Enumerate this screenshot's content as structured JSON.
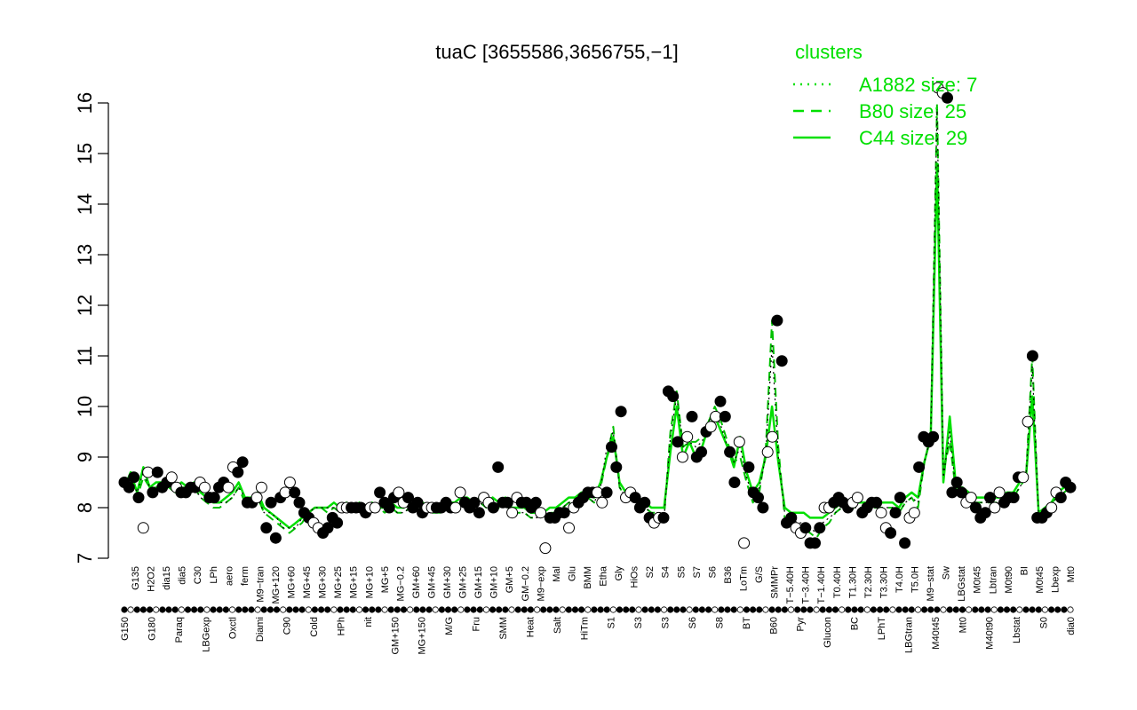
{
  "chart_data": {
    "type": "line",
    "title": "tuaC [3655586,3656755,−1]",
    "ylim": [
      7,
      16
    ],
    "yticks": [
      "7",
      "8",
      "9",
      "10",
      "11",
      "12",
      "13",
      "14",
      "15",
      "16"
    ],
    "x_ticklabels_top": [
      "G135",
      "H2O2",
      "dia15",
      "dia5",
      "C30",
      "LPh",
      "aero",
      "ferm",
      "M9−tran",
      "MG+120",
      "MG+60",
      "MG+45",
      "MG+30",
      "MG+25",
      "MG+15",
      "MG+10",
      "MG+5",
      "MG−0.2",
      "GM+60",
      "GM+45",
      "GM+30",
      "GM+25",
      "GM+15",
      "GM+10",
      "GM+5",
      "GM−0.2",
      "M9−exp",
      "Mal",
      "Glu",
      "BMM",
      "Etha",
      "Gly",
      "HiOs",
      "S2",
      "S4",
      "S5",
      "S7",
      "S6",
      "B36",
      "LoTm",
      "G/S",
      "SMMPr",
      "T−5.40H",
      "T−3.40H",
      "T−1.40H",
      "T0.40H",
      "T1.30H",
      "T2.30H",
      "T3.30H",
      "T4.0H",
      "T5.0H",
      "M9−stat",
      "Sw",
      "LBGstat",
      "M0t45",
      "Lbtran",
      "M0t90",
      "BI",
      "M0t45",
      "Lbexp",
      "Mt0"
    ],
    "x_ticklabels_bottom": [
      "G150",
      "G180",
      "Paraq",
      "LBGexp",
      "Oxctl",
      "Diami",
      "C90",
      "Cold",
      "HPh",
      "nit",
      "GM+150",
      "MG+150",
      "M/G",
      "Fru",
      "SMM",
      "Heat",
      "Salt",
      "HiTm",
      "S1",
      "S3",
      "S3",
      "S6",
      "S8",
      "BT",
      "B60",
      "Pyr",
      "Glucon",
      "BC",
      "LPhT",
      "LBGtran",
      "M40t45",
      "Mt0",
      "M40t90",
      "Lbstat",
      "S0",
      "dia0"
    ],
    "legend": {
      "title": "clusters",
      "entries": [
        {
          "label": "A1882 size: 7",
          "style": "dotted"
        },
        {
          "label": "B80 size: 25",
          "style": "dashed"
        },
        {
          "label": "C44 size: 29",
          "style": "solid"
        }
      ]
    },
    "series": [
      {
        "style": "solid",
        "values": [
          8.4,
          8.7,
          8.3,
          8.8,
          8.4,
          8.5,
          8.5,
          8.4,
          8.4,
          8.5,
          8.4,
          8.5,
          8.3,
          8.2,
          8.1,
          8.1,
          8.2,
          8.3,
          8.5,
          8.2,
          8.2,
          8.3,
          8.0,
          7.9,
          7.8,
          7.7,
          7.6,
          7.7,
          7.8,
          7.9,
          8.0,
          8.0,
          8.0,
          8.1,
          8.0,
          8.1,
          8.0,
          8.1,
          8.0,
          8.1,
          8.0,
          8.0,
          8.1,
          8.0,
          8.0,
          8.1,
          8.0,
          8.1,
          8.0,
          8.0,
          8.0,
          8.1,
          8.1,
          8.2,
          8.2,
          8.1,
          8.2,
          8.1,
          8.2,
          8.1,
          8.2,
          8.0,
          8.0,
          8.0,
          7.9,
          7.9,
          7.9,
          8.0,
          8.0,
          8.1,
          8.2,
          8.2,
          8.3,
          8.3,
          8.2,
          8.5,
          9.0,
          9.4,
          8.5,
          8.3,
          8.3,
          8.2,
          8.1,
          8.0,
          8.0,
          8.0,
          9.1,
          10.0,
          9.0,
          9.3,
          9.0,
          9.2,
          9.6,
          9.8,
          9.5,
          9.2,
          8.8,
          9.4,
          8.7,
          8.3,
          8.5,
          9.0,
          10.0,
          8.9,
          8.0,
          7.9,
          7.9,
          7.9,
          7.8,
          7.8,
          7.8,
          7.9,
          8.0,
          8.1,
          8.1,
          8.1,
          8.1,
          8.1,
          8.1,
          8.1,
          8.1,
          8.1,
          8.0,
          8.2,
          8.3,
          8.2,
          8.9,
          9.4,
          14.8,
          8.5,
          9.8,
          8.4,
          8.4,
          8.3,
          8.2,
          8.2,
          8.2,
          8.2,
          8.2,
          8.3,
          8.3,
          8.5,
          8.6,
          10.2,
          7.9,
          8.0,
          8.1,
          8.3,
          8.4,
          8.5
        ]
      },
      {
        "style": "dashed",
        "values": [
          8.4,
          8.6,
          8.2,
          8.6,
          8.4,
          8.4,
          8.4,
          8.4,
          8.3,
          8.4,
          8.4,
          8.4,
          8.2,
          8.1,
          8.0,
          8.0,
          8.1,
          8.2,
          8.4,
          8.1,
          8.1,
          8.2,
          7.9,
          7.8,
          7.7,
          7.6,
          7.5,
          7.6,
          7.7,
          7.9,
          8.0,
          8.0,
          7.9,
          8.0,
          7.9,
          8.0,
          8.0,
          8.0,
          8.0,
          8.0,
          8.0,
          7.9,
          8.0,
          7.9,
          7.9,
          8.0,
          8.0,
          8.0,
          7.9,
          7.9,
          7.9,
          8.0,
          8.0,
          8.1,
          8.1,
          8.0,
          8.1,
          8.0,
          8.1,
          8.0,
          8.1,
          7.9,
          7.9,
          7.9,
          7.8,
          7.8,
          7.9,
          7.9,
          7.9,
          8.0,
          8.1,
          8.1,
          8.2,
          8.2,
          8.1,
          8.4,
          9.0,
          9.6,
          8.4,
          8.2,
          8.2,
          8.1,
          8.0,
          7.9,
          7.9,
          7.8,
          9.5,
          10.3,
          9.2,
          9.3,
          9.3,
          9.4,
          9.7,
          10.0,
          9.7,
          9.3,
          8.9,
          9.0,
          8.5,
          8.1,
          8.3,
          9.1,
          11.7,
          9.2,
          7.8,
          7.7,
          7.6,
          7.6,
          7.5,
          7.4,
          7.6,
          7.7,
          7.9,
          8.0,
          8.0,
          8.0,
          8.0,
          8.0,
          8.0,
          8.0,
          8.0,
          8.0,
          7.9,
          8.1,
          8.2,
          8.0,
          8.9,
          9.4,
          16.0,
          8.7,
          9.3,
          8.3,
          8.3,
          8.2,
          8.1,
          8.1,
          8.1,
          8.1,
          8.1,
          8.2,
          8.2,
          8.4,
          8.6,
          11.0,
          7.8,
          7.9,
          8.1,
          8.2,
          8.3,
          8.4
        ]
      },
      {
        "style": "dotted",
        "values": [
          8.5,
          8.6,
          8.3,
          8.7,
          8.4,
          8.4,
          8.4,
          8.4,
          8.4,
          8.4,
          8.3,
          8.4,
          8.2,
          8.1,
          8.1,
          8.1,
          8.1,
          8.2,
          8.4,
          8.2,
          8.1,
          8.2,
          7.9,
          7.9,
          7.8,
          7.6,
          7.6,
          7.6,
          7.8,
          7.9,
          8.0,
          8.0,
          8.0,
          8.0,
          7.9,
          8.0,
          8.0,
          8.0,
          8.0,
          8.0,
          8.0,
          8.0,
          8.0,
          7.9,
          7.9,
          8.0,
          8.0,
          8.0,
          7.9,
          7.9,
          7.9,
          8.0,
          8.0,
          8.1,
          8.1,
          8.0,
          8.1,
          8.0,
          8.1,
          8.0,
          8.1,
          7.9,
          7.9,
          7.9,
          7.8,
          7.8,
          7.9,
          7.9,
          7.9,
          8.0,
          8.1,
          8.1,
          8.2,
          8.2,
          8.1,
          8.4,
          9.2,
          9.5,
          8.4,
          8.2,
          8.2,
          8.1,
          8.0,
          7.9,
          7.9,
          7.8,
          9.4,
          10.2,
          9.2,
          9.3,
          9.2,
          9.3,
          9.7,
          9.9,
          9.6,
          9.2,
          8.9,
          9.2,
          8.6,
          8.2,
          8.4,
          9.0,
          11.2,
          9.0,
          7.9,
          7.8,
          7.7,
          7.7,
          7.6,
          7.5,
          7.7,
          7.8,
          7.9,
          8.0,
          8.0,
          8.0,
          8.0,
          8.0,
          8.0,
          8.0,
          8.0,
          8.0,
          7.9,
          8.1,
          8.2,
          8.1,
          8.9,
          9.4,
          15.9,
          8.6,
          9.5,
          8.3,
          8.3,
          8.2,
          8.1,
          8.1,
          8.1,
          8.1,
          8.1,
          8.2,
          8.2,
          8.4,
          8.6,
          10.8,
          7.8,
          7.9,
          8.1,
          8.2,
          8.3,
          8.4
        ]
      }
    ],
    "points": [
      8.5,
      8.4,
      8.6,
      8.2,
      7.6,
      8.7,
      8.3,
      8.7,
      8.4,
      8.5,
      8.6,
      8.4,
      8.3,
      8.3,
      8.4,
      8.4,
      8.5,
      8.4,
      8.2,
      8.2,
      8.4,
      8.5,
      8.4,
      8.8,
      8.7,
      8.9,
      8.1,
      8.1,
      8.2,
      8.4,
      7.6,
      8.1,
      7.4,
      8.2,
      8.3,
      8.5,
      8.3,
      8.1,
      7.9,
      7.8,
      7.7,
      7.6,
      7.5,
      7.6,
      7.8,
      7.7,
      8.0,
      8.0,
      8.0,
      8.0,
      8.0,
      7.9,
      8.0,
      8.0,
      8.3,
      8.1,
      8.0,
      8.2,
      8.3,
      8.1,
      8.2,
      8.0,
      8.1,
      7.9,
      8.0,
      8.0,
      8.0,
      8.0,
      8.1,
      8.0,
      8.0,
      8.3,
      8.1,
      8.0,
      8.1,
      7.9,
      8.2,
      8.1,
      8.0,
      8.8,
      8.1,
      8.1,
      7.9,
      8.2,
      8.1,
      8.1,
      8.0,
      8.1,
      7.9,
      7.2,
      7.8,
      7.8,
      7.9,
      7.9,
      7.6,
      8.0,
      8.1,
      8.2,
      8.3,
      8.3,
      8.3,
      8.1,
      8.3,
      9.2,
      8.8,
      9.9,
      8.2,
      8.3,
      8.2,
      8.0,
      8.1,
      7.8,
      7.7,
      7.8,
      7.8,
      10.3,
      10.2,
      9.3,
      9.0,
      9.4,
      9.8,
      9.0,
      9.1,
      9.5,
      9.6,
      9.8,
      10.1,
      9.8,
      9.1,
      8.5,
      9.3,
      7.3,
      8.8,
      8.3,
      8.2,
      8.0,
      9.1,
      9.4,
      11.7,
      10.9,
      7.7,
      7.8,
      7.6,
      7.5,
      7.6,
      7.3,
      7.3,
      7.6,
      8.0,
      8.0,
      8.1,
      8.2,
      8.1,
      8.0,
      8.1,
      8.2,
      7.9,
      8.0,
      8.1,
      8.1,
      7.9,
      7.6,
      7.5,
      7.9,
      8.2,
      7.3,
      7.8,
      7.9,
      8.8,
      9.4,
      9.3,
      9.4,
      16.3,
      16.2,
      16.1,
      8.3,
      8.5,
      8.3,
      8.1,
      8.2,
      8.0,
      7.8,
      7.9,
      8.2,
      8.0,
      8.3,
      8.1,
      8.2,
      8.2,
      8.6,
      8.6,
      9.7,
      11.0,
      7.8,
      7.8,
      7.9,
      8.0,
      8.3,
      8.2,
      8.5,
      8.4
    ]
  }
}
